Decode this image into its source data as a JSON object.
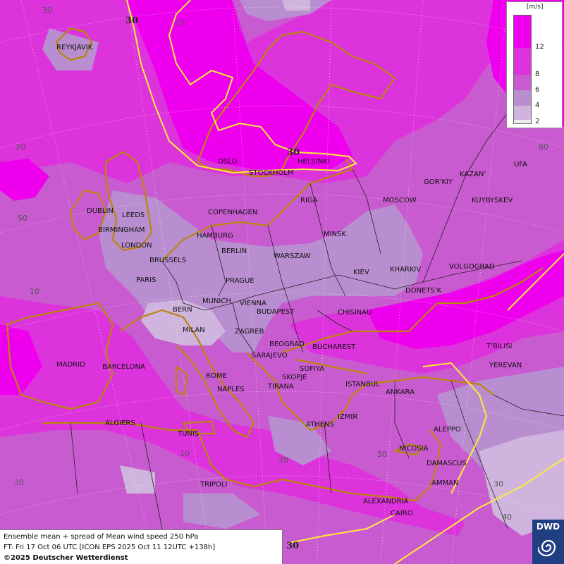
{
  "legend": {
    "unit": "[m/s]",
    "ticks": [
      "12",
      "8",
      "6",
      "4",
      "2"
    ],
    "colors": [
      "#ee00ee",
      "#dd33dd",
      "#c95bd0",
      "#b98ed0",
      "#cfb5dd",
      "#ececec"
    ]
  },
  "info": {
    "line1": "Ensemble mean + spread of Mean wind speed 250 hPa",
    "line2": "FT: Fri 17 Oct 06 UTC [ICON EPS 2025 Oct 11 12UTC +138h]",
    "line3": "©2025 Deutscher Wetterdienst"
  },
  "logo": {
    "text": "DWD"
  },
  "contour_labels": [
    "30",
    "30",
    "30"
  ],
  "grid_labels": {
    "lat": [
      "70",
      "60",
      "50",
      "30",
      "30"
    ],
    "lon": [
      "30",
      "20",
      "10",
      "10",
      "20",
      "30",
      "40",
      "60"
    ]
  },
  "cities": {
    "reykjavik": "REYKJAVIK",
    "oslo": "OSLO",
    "stockholm": "STOCKHOLM",
    "helsinki": "HELSINKI",
    "dublin": "DUBLIN",
    "leeds": "LEEDS",
    "birmingham": "BIRMINGHAM",
    "london": "LONDON",
    "copenhagen": "COPENHAGEN",
    "riga": "RIGA",
    "moscow": "MOSCOW",
    "gorkiy": "GOR'KIY",
    "kazan": "KAZAN'",
    "ufa": "UFA",
    "kuybyshev": "KUYBYSKEV",
    "hamburg": "HAMBURG",
    "berlin": "BERLIN",
    "minsk": "MINSK",
    "brussels": "BRUSSELS",
    "warszaw": "WARSZAW",
    "paris": "PARIS",
    "kiev": "KIEV",
    "kharkiv": "KHARKIV",
    "volgograd": "VOLGOGRAD",
    "prague": "PRAGUE",
    "munich": "MUNICH",
    "vienna": "VIENNA",
    "donetsk": "DONETS'K",
    "bern": "BERN",
    "budapest": "BUDAPEST",
    "chisinau": "CHISINAU",
    "milan": "MILAN",
    "zagreb": "ZAGREB",
    "beograd": "BEOGRAD",
    "bucharest": "BUCHAREST",
    "sarajevo": "SARAJEVO",
    "tbilisi": "T'BILISI",
    "madrid": "MADRID",
    "barcelona": "BARCELONA",
    "sofiya": "SOFIYA",
    "yerevan": "YEREVAN",
    "rome": "ROME",
    "skopje": "SKOPJE",
    "naples": "NAPLES",
    "tirana": "TIRANA",
    "istanbul": "ISTANBUL",
    "ankara": "ANKARA",
    "algiers": "ALGIERS",
    "athens": "ATHENS",
    "izmir": "IZMIR",
    "tunis": "TUNIS",
    "aleppo": "ALEPPO",
    "nicosia": "NICOSIA",
    "damascus": "DAMASCUS",
    "tripoli": "TRIPOLI",
    "amman": "AMMAN",
    "alexandria": "ALEXANDRIA",
    "cairo": "CAIRO"
  }
}
